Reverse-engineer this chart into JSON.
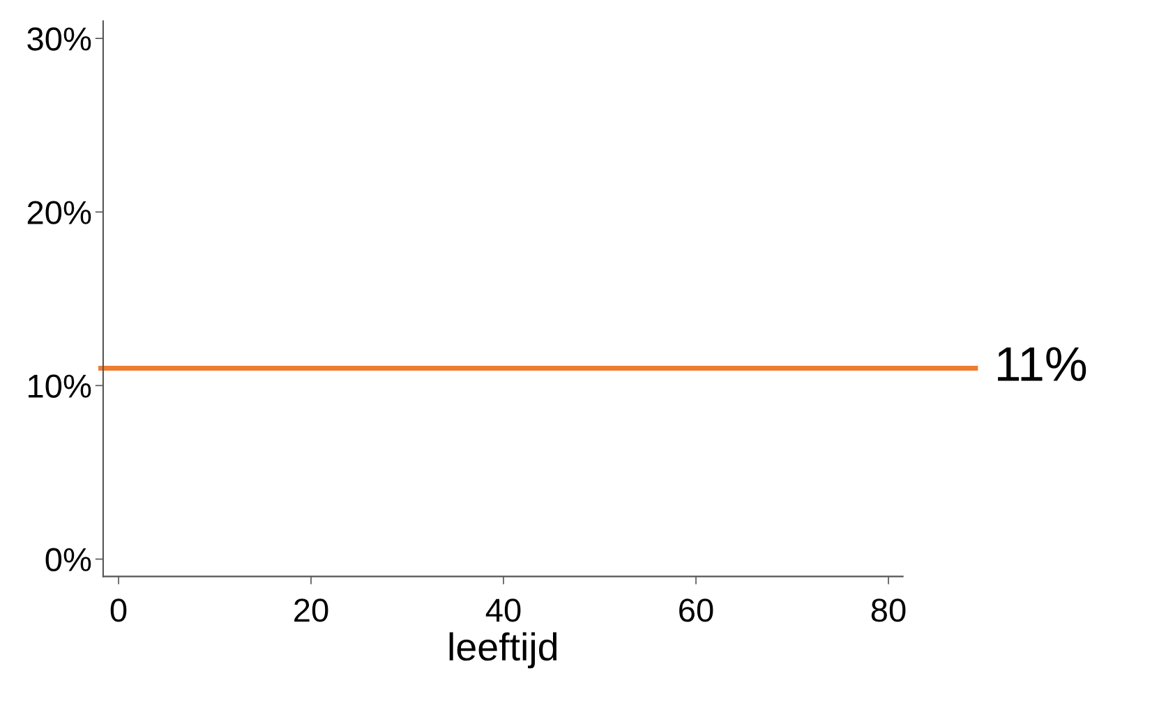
{
  "chart_data": {
    "type": "line",
    "xlabel": "leeftijd",
    "xlim": [
      -1.6,
      81.5
    ],
    "xticks": [
      0,
      20,
      40,
      60,
      80
    ],
    "ylim": [
      -1,
      31
    ],
    "yticks": [
      {
        "value": 0,
        "label": "0%"
      },
      {
        "value": 10,
        "label": "10%"
      },
      {
        "value": 20,
        "label": "20%"
      },
      {
        "value": 30,
        "label": "30%"
      }
    ],
    "ref_lines": [
      {
        "axis": "y",
        "value": 11,
        "label": "11%",
        "color": "#ed7d31",
        "line_style": "solid"
      }
    ],
    "grid": false,
    "legend": false
  }
}
